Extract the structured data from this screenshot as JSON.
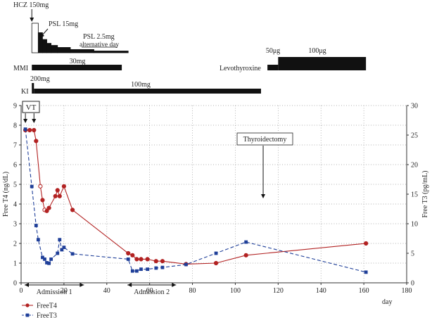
{
  "chart_data": {
    "type": "line",
    "x_range": [
      0,
      180
    ],
    "x_ticks": [
      0,
      20,
      40,
      60,
      80,
      100,
      120,
      140,
      160,
      180
    ],
    "xlabel": "day",
    "y_left": {
      "label": "Free T4 (ng/dL)",
      "range": [
        0,
        9
      ],
      "ticks": [
        0,
        1,
        2,
        3,
        4,
        5,
        6,
        7,
        8,
        9
      ]
    },
    "y_right": {
      "label": "Free T3 (pg/mL)",
      "range": [
        0,
        30
      ],
      "ticks": [
        0,
        5,
        10,
        15,
        20,
        25,
        30
      ]
    },
    "grid": "dotted",
    "series": [
      {
        "name": "FreeT4",
        "color": "#b22222",
        "marker": "circle",
        "line": "solid",
        "axis": "left",
        "points": [
          [
            2,
            7.75
          ],
          [
            4,
            7.75
          ],
          [
            6,
            7.75
          ],
          [
            7,
            7.2
          ],
          [
            9,
            4.9
          ],
          [
            10,
            4.2
          ],
          [
            11,
            3.7
          ],
          [
            12,
            3.65
          ],
          [
            13,
            3.8
          ],
          [
            16,
            4.4
          ],
          [
            17,
            4.7
          ],
          [
            18,
            4.4
          ],
          [
            20,
            4.9
          ],
          [
            24,
            3.7
          ],
          [
            50,
            1.5
          ],
          [
            52,
            1.4
          ],
          [
            54,
            1.2
          ],
          [
            56,
            1.2
          ],
          [
            59,
            1.2
          ],
          [
            63,
            1.1
          ],
          [
            66,
            1.1
          ],
          [
            77,
            0.95
          ],
          [
            91,
            1.0
          ],
          [
            105,
            1.4
          ],
          [
            161,
            2.0
          ]
        ],
        "open_points": [
          4,
          6
        ]
      },
      {
        "name": "FreeT3",
        "color": "#1f3f99",
        "marker": "square",
        "line": "dashed",
        "axis": "right",
        "points": [
          [
            2,
            26
          ],
          [
            5,
            16.3
          ],
          [
            7,
            9.7
          ],
          [
            8,
            7.3
          ],
          [
            10,
            4.3
          ],
          [
            11,
            4.0
          ],
          [
            12,
            3.4
          ],
          [
            13,
            3.3
          ],
          [
            14,
            4.0
          ],
          [
            17,
            5.0
          ],
          [
            18,
            7.3
          ],
          [
            19,
            5.6
          ],
          [
            20,
            6.0
          ],
          [
            24,
            4.9
          ],
          [
            50,
            4.0
          ],
          [
            52,
            2.0
          ],
          [
            54,
            2.0
          ],
          [
            56,
            2.3
          ],
          [
            59,
            2.3
          ],
          [
            63,
            2.5
          ],
          [
            66,
            2.6
          ],
          [
            77,
            3.1
          ],
          [
            91,
            5.0
          ],
          [
            105,
            6.9
          ],
          [
            161,
            1.8
          ]
        ]
      }
    ],
    "treatments": {
      "hcz": {
        "label": "HCZ 150mg",
        "start": 5,
        "bars": [
          [
            5,
            8,
            1.0
          ],
          [
            8,
            10,
            0.68
          ],
          [
            10,
            12,
            0.45
          ],
          [
            12,
            14,
            0.32
          ],
          [
            14,
            17,
            0.25
          ],
          [
            17,
            23,
            0.18
          ],
          [
            23,
            34,
            0.11
          ],
          [
            34,
            50,
            0.06
          ]
        ]
      },
      "psl_label": "PSL 15mg",
      "psl_taper_label": "PSL 2.5mg",
      "psl_taper_sub": "alternative day",
      "mmi": {
        "label": "MMI",
        "dose": "30mg",
        "start": 5,
        "end": 47
      },
      "levothyroxine": {
        "label": "Levothyroxine",
        "segments": [
          {
            "dose": "50μg",
            "start": 115,
            "end": 120,
            "level": "low"
          },
          {
            "dose": "100μg",
            "start": 120,
            "end": 161,
            "level": "high"
          }
        ]
      },
      "ki": {
        "label": "KI",
        "doses": [
          {
            "dose": "200mg",
            "start": 5,
            "end": 6
          },
          {
            "dose": "100mg",
            "start": 6,
            "end": 112
          }
        ]
      }
    },
    "annotations": [
      {
        "text": "VT",
        "x": 2,
        "x2": 6
      },
      {
        "text": "Thyroidectomy",
        "x": 113
      }
    ],
    "periods": [
      {
        "label": "Admission 1",
        "start": 0,
        "end": 30
      },
      {
        "label": "Admission 2",
        "start": 48,
        "end": 73
      }
    ],
    "legend": {
      "position": "bottom-left",
      "entries": [
        "FreeT4",
        "FreeT3"
      ]
    }
  }
}
